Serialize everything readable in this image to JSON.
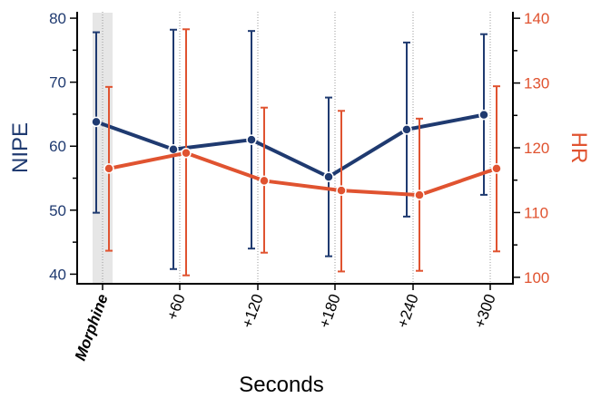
{
  "chart_data": {
    "type": "line",
    "categories": [
      "Morphine",
      "+60",
      "+120",
      "+180",
      "+240",
      "+300"
    ],
    "highlight_category": "Morphine",
    "xlabel": "Seconds",
    "series": [
      {
        "name": "NIPE",
        "axis": "left",
        "color": "#1f3a70",
        "values": [
          63.8,
          59.5,
          61.0,
          55.2,
          62.6,
          64.9
        ],
        "error_low": [
          49.6,
          40.8,
          44.0,
          42.8,
          49.0,
          52.4
        ],
        "error_high": [
          77.8,
          78.2,
          78.0,
          67.6,
          76.2,
          77.5
        ]
      },
      {
        "name": "HR",
        "axis": "right",
        "color": "#e05330",
        "values": [
          116.8,
          119.2,
          114.9,
          113.4,
          112.7,
          116.8
        ],
        "error_low": [
          104.1,
          100.3,
          103.8,
          100.9,
          101.0,
          104.0
        ],
        "error_high": [
          129.4,
          138.3,
          126.2,
          125.7,
          124.5,
          129.5
        ]
      }
    ],
    "y_left": {
      "label": "NIPE",
      "ylim": [
        38.5,
        81
      ],
      "ticks": [
        40,
        50,
        60,
        70,
        80
      ]
    },
    "y_right": {
      "label": "HR",
      "ylim": [
        99,
        141
      ],
      "ticks": [
        100,
        110,
        120,
        130,
        140
      ]
    },
    "grid": "vertical-dotted",
    "colors": {
      "left_axis": "#1f3a70",
      "right_axis": "#e05330",
      "highlight": "#e6e6e6",
      "grid": "#9a9a9a"
    }
  }
}
